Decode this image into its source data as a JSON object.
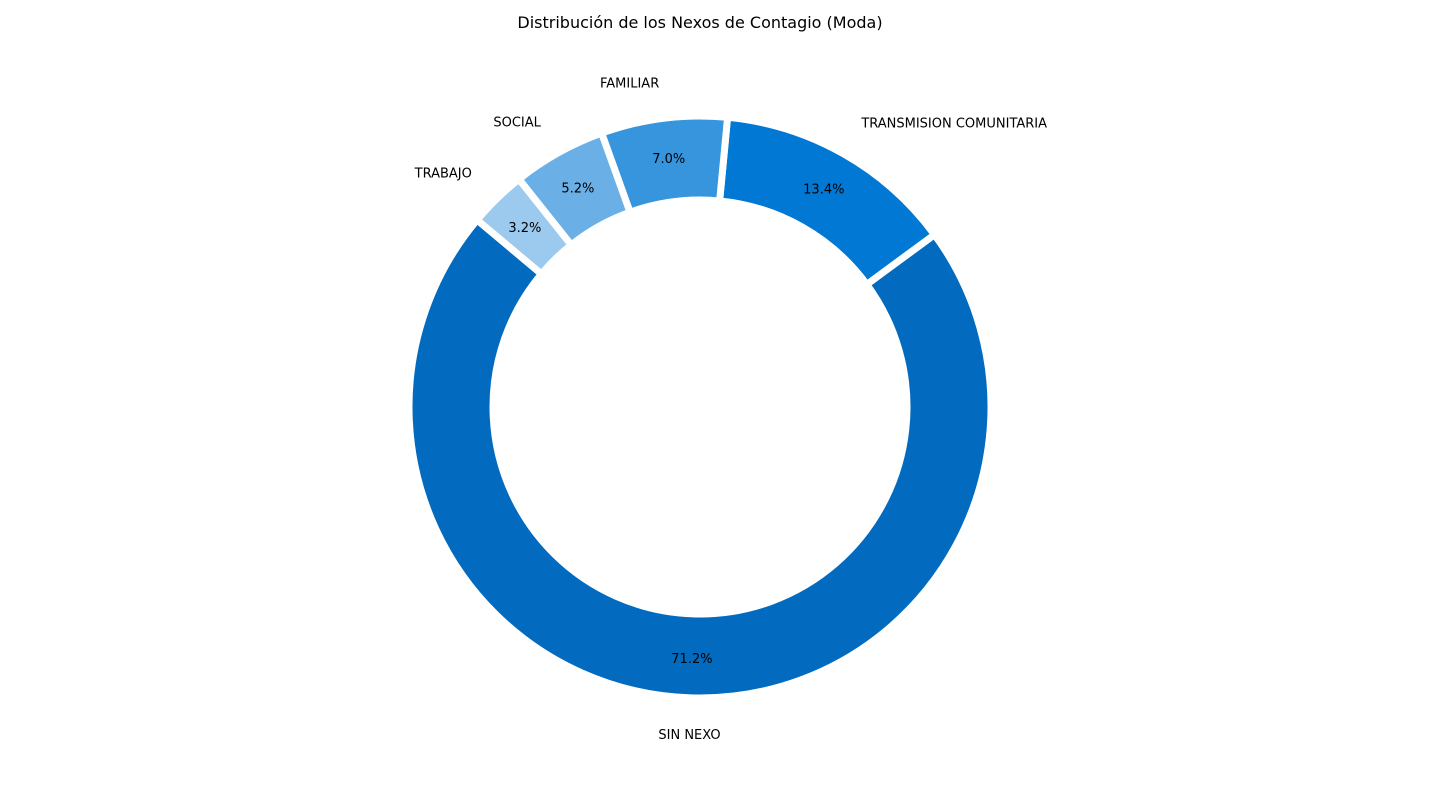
{
  "chart_data": {
    "type": "pie",
    "style": "donut",
    "title": "Distribución de los Nexos de Contagio (Moda)",
    "slices": [
      {
        "label": "SIN NEXO",
        "value": 71.2,
        "pct_label": "71.2%",
        "color": "#026bbf"
      },
      {
        "label": "TRANSMISION COMUNITARIA",
        "value": 13.4,
        "pct_label": "13.4%",
        "color": "#0078d4"
      },
      {
        "label": "FAMILIAR",
        "value": 7.0,
        "pct_label": "7.0%",
        "color": "#3795dd"
      },
      {
        "label": "SOCIAL",
        "value": 5.2,
        "pct_label": "5.2%",
        "color": "#6aafe5"
      },
      {
        "label": "TRABAJO",
        "value": 3.2,
        "pct_label": "3.2%",
        "color": "#9ccaee"
      }
    ],
    "start_angle_deg": 140,
    "direction": "counterclockwise",
    "legend": "none",
    "grid": false
  }
}
